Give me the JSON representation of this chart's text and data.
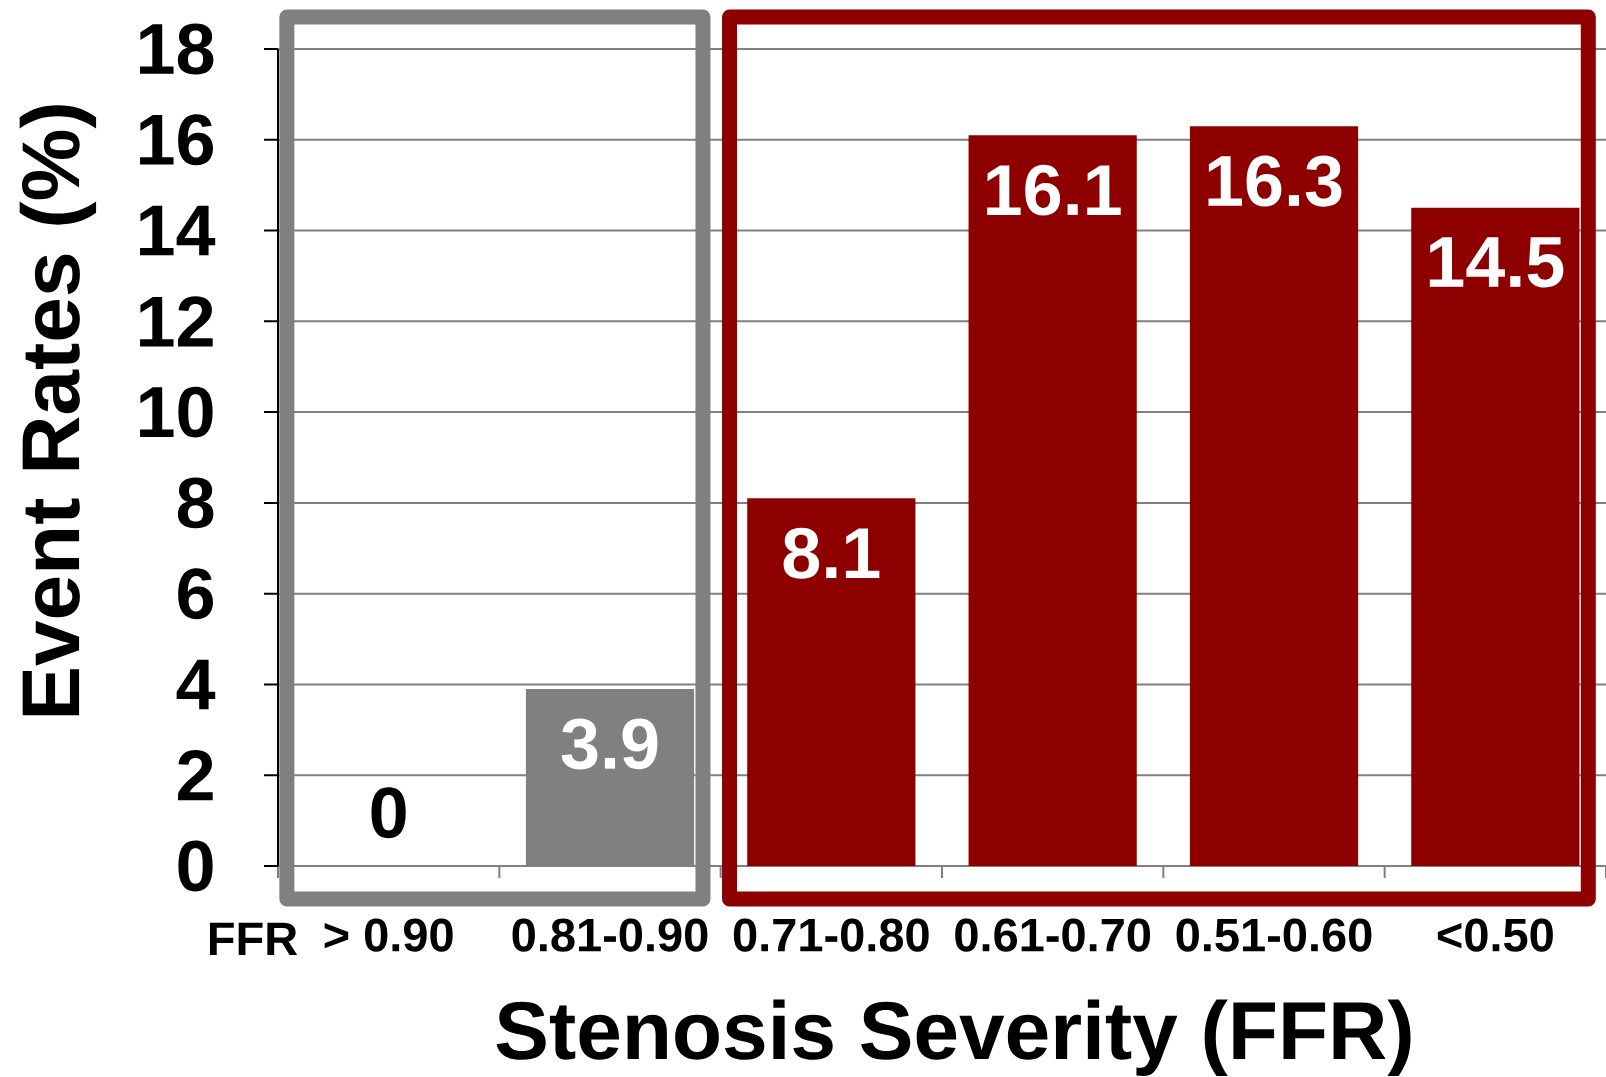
{
  "chart_data": {
    "type": "bar",
    "categories": [
      "> 0.90",
      "0.81-0.90",
      "0.71-0.80",
      "0.61-0.70",
      "0.51-0.60",
      "<0.50"
    ],
    "values": [
      0,
      3.9,
      8.1,
      16.1,
      16.3,
      14.5
    ],
    "colors": [
      "#808080",
      "#808080",
      "#8e0000",
      "#8e0000",
      "#8e0000",
      "#8e0000"
    ],
    "xlabel": "Stenosis Severity (FFR)",
    "ylabel": "Event Rates (%)",
    "ylim": [
      0,
      18
    ],
    "yticks": [
      0,
      2,
      4,
      6,
      8,
      10,
      12,
      14,
      16,
      18
    ],
    "grid": "y",
    "data_labels": true,
    "annotations": [
      "FFR"
    ]
  }
}
